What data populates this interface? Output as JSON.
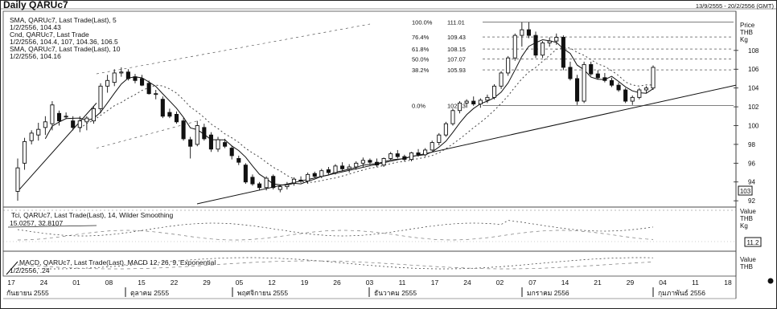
{
  "chart_data": {
    "type": "candlestick",
    "title": "Daily QARUc7",
    "date_range": "13/9/2555 - 20/2/2556 (GMT)",
    "price_axis": {
      "header": [
        "Price",
        "THB",
        "Kg"
      ],
      "ticks": [
        92,
        94,
        96,
        98,
        100,
        102,
        104,
        106,
        108
      ],
      "last_value": "103",
      "ylim": [
        91.5,
        112
      ]
    },
    "legend": [
      "SMA, QARUc7, Last Trade(Last), 5",
      "1/2/2556, 104.43",
      "Cnd, QARUc7, Last Trade",
      "1/2/2556, 104.4, 107, 104.36, 106.5",
      "SMA, QARUc7, Last Trade(Last), 10",
      "1/2/2556, 104.16"
    ],
    "fib_levels": [
      {
        "label": "100.0%",
        "value": 111.01
      },
      {
        "label": "76.4%",
        "value": 109.43
      },
      {
        "label": "61.8%",
        "value": 108.15
      },
      {
        "label": "50.0%",
        "value": 107.07
      },
      {
        "label": "38.2%",
        "value": 105.93
      },
      {
        "label": "0.0%",
        "value": 102.13
      }
    ],
    "x_ticks": [
      "17",
      "24",
      "01",
      "08",
      "15",
      "22",
      "29",
      "05",
      "12",
      "19",
      "26",
      "03",
      "11",
      "17",
      "24",
      "02",
      "07",
      "14",
      "21",
      "29",
      "04",
      "11",
      "18"
    ],
    "months": [
      "กันยายน 2555",
      "ตุลาคม 2555",
      "พฤศจิกายน 2555",
      "ธันวาคม 2555",
      "มกราคม 2556",
      "กุมภาพันธ์ 2556"
    ],
    "candles": [
      {
        "o": 93,
        "h": 96.5,
        "l": 92,
        "c": 95.5
      },
      {
        "o": 96,
        "h": 98.7,
        "l": 95.3,
        "c": 98.3
      },
      {
        "o": 98.4,
        "h": 99.5,
        "l": 98,
        "c": 99.2
      },
      {
        "o": 99,
        "h": 100.3,
        "l": 98.4,
        "c": 99.6
      },
      {
        "o": 99.8,
        "h": 101,
        "l": 99,
        "c": 100.4
      },
      {
        "o": 100.2,
        "h": 102.6,
        "l": 99.5,
        "c": 102.2
      },
      {
        "o": 101.3,
        "h": 101.6,
        "l": 100,
        "c": 100.5
      },
      {
        "o": 101,
        "h": 101.4,
        "l": 100.7,
        "c": 101
      },
      {
        "o": 100.5,
        "h": 101,
        "l": 99.5,
        "c": 99.8
      },
      {
        "o": 99.8,
        "h": 101,
        "l": 99.3,
        "c": 100.5
      },
      {
        "o": 100.4,
        "h": 101,
        "l": 99.5,
        "c": 100.8
      },
      {
        "o": 100.5,
        "h": 102,
        "l": 100.2,
        "c": 101.8
      },
      {
        "o": 101.8,
        "h": 104.5,
        "l": 101.3,
        "c": 104.2
      },
      {
        "o": 104.2,
        "h": 105.4,
        "l": 103.5,
        "c": 104.8
      },
      {
        "o": 104.6,
        "h": 106,
        "l": 104.2,
        "c": 105.6
      },
      {
        "o": 105.6,
        "h": 106.2,
        "l": 105.2,
        "c": 105.7
      },
      {
        "o": 105.7,
        "h": 106,
        "l": 104.8,
        "c": 105
      },
      {
        "o": 105.2,
        "h": 105.5,
        "l": 104.5,
        "c": 104.8
      },
      {
        "o": 105,
        "h": 105.4,
        "l": 104.2,
        "c": 104.3
      },
      {
        "o": 104.5,
        "h": 104.8,
        "l": 103.3,
        "c": 103.4
      },
      {
        "o": 103.4,
        "h": 103.8,
        "l": 102.8,
        "c": 103.4
      },
      {
        "o": 102.8,
        "h": 103.1,
        "l": 100.8,
        "c": 101
      },
      {
        "o": 101.4,
        "h": 101.8,
        "l": 100.8,
        "c": 101
      },
      {
        "o": 101.2,
        "h": 101.5,
        "l": 100.2,
        "c": 100.4
      },
      {
        "o": 100.5,
        "h": 100.8,
        "l": 98.4,
        "c": 98.6
      },
      {
        "o": 98.5,
        "h": 98.8,
        "l": 96.5,
        "c": 97.8
      },
      {
        "o": 98,
        "h": 100.5,
        "l": 97.8,
        "c": 100
      },
      {
        "o": 99.8,
        "h": 100.2,
        "l": 98.4,
        "c": 98.6
      },
      {
        "o": 99,
        "h": 99.3,
        "l": 97.2,
        "c": 97.5
      },
      {
        "o": 97.5,
        "h": 98.8,
        "l": 97.2,
        "c": 98.5
      },
      {
        "o": 98.2,
        "h": 98.6,
        "l": 97.6,
        "c": 97.8
      },
      {
        "o": 97.6,
        "h": 97.8,
        "l": 96.4,
        "c": 96.8
      },
      {
        "o": 96.5,
        "h": 96.8,
        "l": 95.8,
        "c": 96.1
      },
      {
        "o": 95.8,
        "h": 96,
        "l": 93.8,
        "c": 94
      },
      {
        "o": 94.5,
        "h": 94.8,
        "l": 93.6,
        "c": 93.8
      },
      {
        "o": 93.8,
        "h": 94,
        "l": 93.1,
        "c": 93.4
      },
      {
        "o": 93.4,
        "h": 94.6,
        "l": 93.1,
        "c": 94.4
      },
      {
        "o": 94.6,
        "h": 94.8,
        "l": 93.2,
        "c": 93.4
      },
      {
        "o": 93.2,
        "h": 93.7,
        "l": 92.9,
        "c": 93.5
      },
      {
        "o": 93.5,
        "h": 94,
        "l": 93.2,
        "c": 93.7
      },
      {
        "o": 93.9,
        "h": 94.5,
        "l": 93.6,
        "c": 94.3
      },
      {
        "o": 94.2,
        "h": 94.6,
        "l": 93.9,
        "c": 94.1
      },
      {
        "o": 94.1,
        "h": 95,
        "l": 93.8,
        "c": 94.8
      },
      {
        "o": 94.9,
        "h": 95.1,
        "l": 94.4,
        "c": 94.6
      },
      {
        "o": 94.6,
        "h": 95.4,
        "l": 94.4,
        "c": 95.2
      },
      {
        "o": 95.3,
        "h": 95.6,
        "l": 94.8,
        "c": 95
      },
      {
        "o": 95,
        "h": 95.9,
        "l": 94.8,
        "c": 95.7
      },
      {
        "o": 95.7,
        "h": 96.1,
        "l": 95.2,
        "c": 95.4
      },
      {
        "o": 95.4,
        "h": 95.9,
        "l": 95,
        "c": 95.6
      },
      {
        "o": 95.6,
        "h": 96.2,
        "l": 95.3,
        "c": 96
      },
      {
        "o": 96,
        "h": 96.6,
        "l": 95.6,
        "c": 96.3
      },
      {
        "o": 96.3,
        "h": 96.5,
        "l": 95.8,
        "c": 96.1
      },
      {
        "o": 96.1,
        "h": 96.5,
        "l": 95.6,
        "c": 95.8
      },
      {
        "o": 95.8,
        "h": 96.6,
        "l": 95.6,
        "c": 96.5
      },
      {
        "o": 96.5,
        "h": 97.2,
        "l": 96.3,
        "c": 97
      },
      {
        "o": 97,
        "h": 97.4,
        "l": 96.5,
        "c": 96.7
      },
      {
        "o": 96.7,
        "h": 96.9,
        "l": 96.2,
        "c": 96.4
      },
      {
        "o": 96.4,
        "h": 97.2,
        "l": 96.2,
        "c": 97.1
      },
      {
        "o": 97.1,
        "h": 97.5,
        "l": 96.7,
        "c": 96.9
      },
      {
        "o": 96.9,
        "h": 97.6,
        "l": 96.7,
        "c": 97.4
      },
      {
        "o": 97.4,
        "h": 98.4,
        "l": 97.3,
        "c": 98.2
      },
      {
        "o": 98.2,
        "h": 99.2,
        "l": 97.9,
        "c": 99
      },
      {
        "o": 99,
        "h": 100.4,
        "l": 98.8,
        "c": 100.2
      },
      {
        "o": 100.2,
        "h": 101.8,
        "l": 100,
        "c": 101.6
      },
      {
        "o": 101.6,
        "h": 102.6,
        "l": 101.3,
        "c": 102.4
      },
      {
        "o": 102.4,
        "h": 102.8,
        "l": 101.9,
        "c": 102.6
      },
      {
        "o": 102.6,
        "h": 103.1,
        "l": 102.1,
        "c": 102.3
      },
      {
        "o": 102.3,
        "h": 102.9,
        "l": 101.9,
        "c": 102.7
      },
      {
        "o": 102.7,
        "h": 103.3,
        "l": 102.4,
        "c": 103
      },
      {
        "o": 103,
        "h": 104.4,
        "l": 102.8,
        "c": 104.2
      },
      {
        "o": 104.2,
        "h": 105.8,
        "l": 103.9,
        "c": 105.6
      },
      {
        "o": 105.6,
        "h": 107.4,
        "l": 105.3,
        "c": 107.2
      },
      {
        "o": 107.2,
        "h": 109.8,
        "l": 106.9,
        "c": 109.6
      },
      {
        "o": 109.6,
        "h": 111,
        "l": 108.4,
        "c": 110.2
      },
      {
        "o": 110.2,
        "h": 111,
        "l": 109.3,
        "c": 109.6
      },
      {
        "o": 109.6,
        "h": 110,
        "l": 107.2,
        "c": 107.5
      },
      {
        "o": 107.5,
        "h": 109,
        "l": 107.2,
        "c": 108.8
      },
      {
        "o": 108.8,
        "h": 109.4,
        "l": 108.4,
        "c": 109
      },
      {
        "o": 109,
        "h": 109.8,
        "l": 108.6,
        "c": 109.4
      },
      {
        "o": 109.4,
        "h": 109.6,
        "l": 105.9,
        "c": 106.2
      },
      {
        "o": 106.2,
        "h": 106.8,
        "l": 104.8,
        "c": 105
      },
      {
        "o": 105,
        "h": 105.4,
        "l": 102.2,
        "c": 102.6
      },
      {
        "o": 102.6,
        "h": 106.8,
        "l": 102.4,
        "c": 106.5
      },
      {
        "o": 106.5,
        "h": 106.8,
        "l": 105.3,
        "c": 105.5
      },
      {
        "o": 105.5,
        "h": 105.9,
        "l": 104.9,
        "c": 105.1
      },
      {
        "o": 105.1,
        "h": 105.6,
        "l": 104.6,
        "c": 104.8
      },
      {
        "o": 104.8,
        "h": 105.1,
        "l": 104.1,
        "c": 104.3
      },
      {
        "o": 104.3,
        "h": 104.6,
        "l": 103.6,
        "c": 103.8
      },
      {
        "o": 103.8,
        "h": 104,
        "l": 102.4,
        "c": 102.6
      },
      {
        "o": 102.6,
        "h": 103.2,
        "l": 102.2,
        "c": 103
      },
      {
        "o": 103,
        "h": 104,
        "l": 102.8,
        "c": 103.8
      },
      {
        "o": 103.8,
        "h": 104.2,
        "l": 103.5,
        "c": 104
      },
      {
        "o": 104,
        "h": 106.4,
        "l": 103.8,
        "c": 106.2
      }
    ],
    "sub_panels": [
      {
        "legend": "Tci, QARUc7, Last Trade(Last), 14, Wilder Smoothing",
        "value": "15.0257, 32.8107",
        "header": [
          "Value",
          "THB",
          "Kg"
        ],
        "last_value": "11.2"
      },
      {
        "legend": "MACD, QARUc7, Last Trade(Last), MACD 12, 26, 9, Exponential",
        "value": "1/2/2556, .24",
        "header": [
          "Value",
          "THB"
        ]
      }
    ]
  }
}
